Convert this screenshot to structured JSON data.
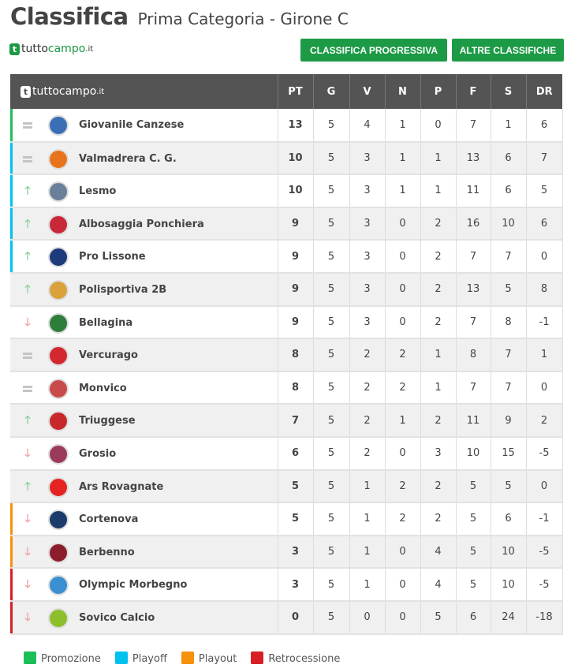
{
  "header": {
    "title": "Classifica",
    "subtitle": "Prima Categoria - Girone C"
  },
  "brand": {
    "t": "t",
    "name_a": "tutto",
    "name_b": "campo",
    "tld": ".it"
  },
  "buttons": {
    "progressiva": "CLASSIFICA PROGRESSIVA",
    "altre": "ALTRE CLASSIFICHE"
  },
  "columns": [
    "PT",
    "G",
    "V",
    "N",
    "P",
    "F",
    "S",
    "DR"
  ],
  "colors": {
    "Promozione": "#1cbe5a",
    "Playoff": "#00c2f0",
    "Playout": "#f7900a",
    "Retrocessione": "#d81f26"
  },
  "rows": [
    {
      "trend": "same",
      "team": "Giovanile Canzese",
      "zone": "Promozione",
      "crest": "#3a6fb5",
      "stats": [
        "13",
        "5",
        "4",
        "1",
        "0",
        "7",
        "1",
        "6"
      ]
    },
    {
      "trend": "same",
      "team": "Valmadrera C. G.",
      "zone": "Playoff",
      "crest": "#e8731c",
      "stats": [
        "10",
        "5",
        "3",
        "1",
        "1",
        "13",
        "6",
        "7"
      ]
    },
    {
      "trend": "up",
      "team": "Lesmo",
      "zone": "Playoff",
      "crest": "#6a7f99",
      "stats": [
        "10",
        "5",
        "3",
        "1",
        "1",
        "11",
        "6",
        "5"
      ]
    },
    {
      "trend": "up",
      "team": "Albosaggia Ponchiera",
      "zone": "Playoff",
      "crest": "#c8283a",
      "stats": [
        "9",
        "5",
        "3",
        "0",
        "2",
        "16",
        "10",
        "6"
      ]
    },
    {
      "trend": "up",
      "team": "Pro Lissone",
      "zone": "Playoff",
      "crest": "#1d3b7a",
      "stats": [
        "9",
        "5",
        "3",
        "0",
        "2",
        "7",
        "7",
        "0"
      ]
    },
    {
      "trend": "up",
      "team": "Polisportiva 2B",
      "zone": "",
      "crest": "#d9a23a",
      "stats": [
        "9",
        "5",
        "3",
        "0",
        "2",
        "13",
        "5",
        "8"
      ]
    },
    {
      "trend": "down",
      "team": "Bellagina",
      "zone": "",
      "crest": "#2f7d3a",
      "stats": [
        "9",
        "5",
        "3",
        "0",
        "2",
        "7",
        "8",
        "-1"
      ]
    },
    {
      "trend": "same",
      "team": "Vercurago",
      "zone": "",
      "crest": "#d3282f",
      "stats": [
        "8",
        "5",
        "2",
        "2",
        "1",
        "8",
        "7",
        "1"
      ]
    },
    {
      "trend": "same",
      "team": "Monvico",
      "zone": "",
      "crest": "#c84a4a",
      "stats": [
        "8",
        "5",
        "2",
        "2",
        "1",
        "7",
        "7",
        "0"
      ]
    },
    {
      "trend": "up",
      "team": "Triuggese",
      "zone": "",
      "crest": "#c8282a",
      "stats": [
        "7",
        "5",
        "2",
        "1",
        "2",
        "11",
        "9",
        "2"
      ]
    },
    {
      "trend": "down",
      "team": "Grosio",
      "zone": "",
      "crest": "#9b3a5a",
      "stats": [
        "6",
        "5",
        "2",
        "0",
        "3",
        "10",
        "15",
        "-5"
      ]
    },
    {
      "trend": "up",
      "team": "Ars Rovagnate",
      "zone": "",
      "crest": "#e52323",
      "stats": [
        "5",
        "5",
        "1",
        "2",
        "2",
        "5",
        "5",
        "0"
      ]
    },
    {
      "trend": "down",
      "team": "Cortenova",
      "zone": "Playout",
      "crest": "#1b3b6b",
      "stats": [
        "5",
        "5",
        "1",
        "2",
        "2",
        "5",
        "6",
        "-1"
      ]
    },
    {
      "trend": "down",
      "team": "Berbenno",
      "zone": "Playout",
      "crest": "#8b1d2c",
      "stats": [
        "3",
        "5",
        "1",
        "0",
        "4",
        "5",
        "10",
        "-5"
      ]
    },
    {
      "trend": "down",
      "team": "Olympic Morbegno",
      "zone": "Retrocessione",
      "crest": "#3a8fd0",
      "stats": [
        "3",
        "5",
        "1",
        "0",
        "4",
        "5",
        "10",
        "-5"
      ]
    },
    {
      "trend": "down",
      "team": "Sovico Calcio",
      "zone": "Retrocessione",
      "crest": "#8cbf2a",
      "stats": [
        "0",
        "5",
        "0",
        "0",
        "5",
        "6",
        "24",
        "-18"
      ]
    }
  ],
  "legend": [
    "Promozione",
    "Playoff",
    "Playout",
    "Retrocessione"
  ]
}
